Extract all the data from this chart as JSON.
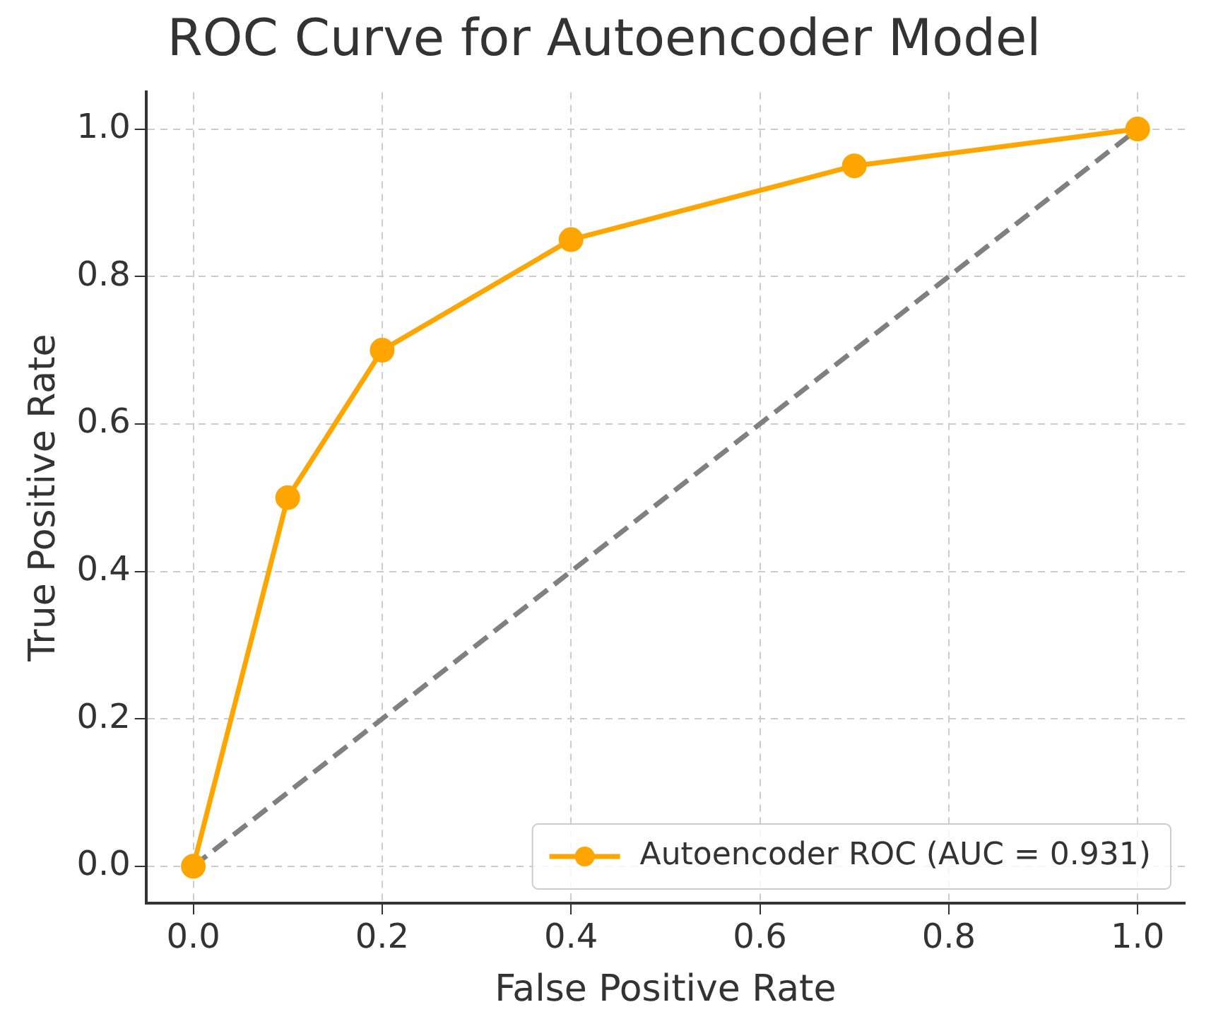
{
  "chart_data": {
    "type": "line",
    "title": "ROC Curve for Autoencoder Model",
    "xlabel": "False Positive Rate",
    "ylabel": "True Positive Rate",
    "series": [
      {
        "name": "Autoencoder ROC (AUC = 0.931)",
        "color": "#ffa500",
        "x": [
          0,
          0.1,
          0.2,
          0.4,
          0.7,
          1
        ],
        "values": [
          0,
          0.5,
          0.7,
          0.85,
          0.95,
          1
        ],
        "marker": "circle",
        "line_style": "solid"
      },
      {
        "color": "#808080",
        "x": [
          0,
          1
        ],
        "values": [
          0,
          1
        ],
        "marker": "none",
        "line_style": "dashed"
      }
    ],
    "xlim": [
      -0.05,
      1.05
    ],
    "ylim": [
      -0.05,
      1.05
    ],
    "xticks": [
      {
        "value": 0,
        "label": "0.0"
      },
      {
        "value": 0.2,
        "label": "0.2"
      },
      {
        "value": 0.4,
        "label": "0.4"
      },
      {
        "value": 0.6,
        "label": "0.6"
      },
      {
        "value": 0.8,
        "label": "0.8"
      },
      {
        "value": 1,
        "label": "1.0"
      }
    ],
    "yticks": [
      {
        "value": 0,
        "label": "0.0"
      },
      {
        "value": 0.2,
        "label": "0.2"
      },
      {
        "value": 0.4,
        "label": "0.4"
      },
      {
        "value": 0.6,
        "label": "0.6"
      },
      {
        "value": 0.8,
        "label": "0.8"
      },
      {
        "value": 1,
        "label": "1.0"
      }
    ],
    "grid": true,
    "legend": "bottom right"
  }
}
